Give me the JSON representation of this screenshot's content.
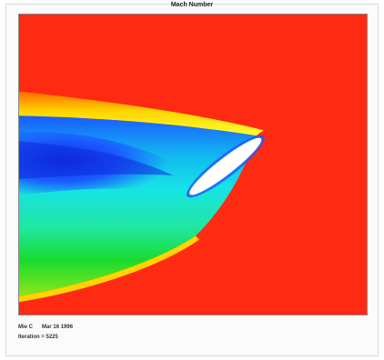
{
  "plot": {
    "title": "Mach Number",
    "colors": {
      "freestream": "#ff2a12",
      "shock_outer": "#ff8a00",
      "shock_mid": "#ffe200",
      "green": "#19dc2e",
      "cyan": "#16e3e6",
      "blue": "#1a5bff",
      "deep_blue": "#0d2bdc",
      "airfoil": "#ffffff"
    }
  },
  "footer": {
    "line1_left": "Mie C",
    "line1_right": "Mar 16 1996",
    "line2": "Iteration = 5225"
  }
}
